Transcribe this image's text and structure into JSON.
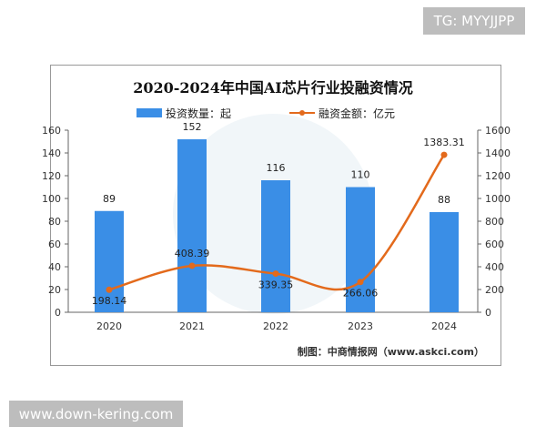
{
  "overlays": {
    "top_right": "TG: MYYJJPP",
    "bottom_left": "www.down-kering.com"
  },
  "chart_data": {
    "type": "bar+line",
    "title": "2020-2024年中国AI芯片行业投融资情况",
    "categories": [
      "2020",
      "2021",
      "2022",
      "2023",
      "2024"
    ],
    "series": [
      {
        "name": "投资数量：起",
        "type": "bar",
        "axis": "left",
        "color": "#3a8ee6",
        "values": [
          89,
          152,
          116,
          110,
          88
        ]
      },
      {
        "name": "融资金额：亿元",
        "type": "line",
        "axis": "right",
        "color": "#e36a1c",
        "values": [
          198.14,
          408.39,
          339.35,
          266.06,
          1383.31
        ]
      }
    ],
    "left_axis": {
      "range": [
        0,
        160
      ],
      "ticks": [
        0,
        20,
        40,
        60,
        80,
        100,
        120,
        140,
        160
      ]
    },
    "right_axis": {
      "range": [
        0,
        1600
      ],
      "ticks": [
        0,
        200,
        400,
        600,
        800,
        1000,
        1200,
        1400,
        1600
      ]
    },
    "legend": "top",
    "source": "制图：中商情报网（www.askci.com）"
  }
}
